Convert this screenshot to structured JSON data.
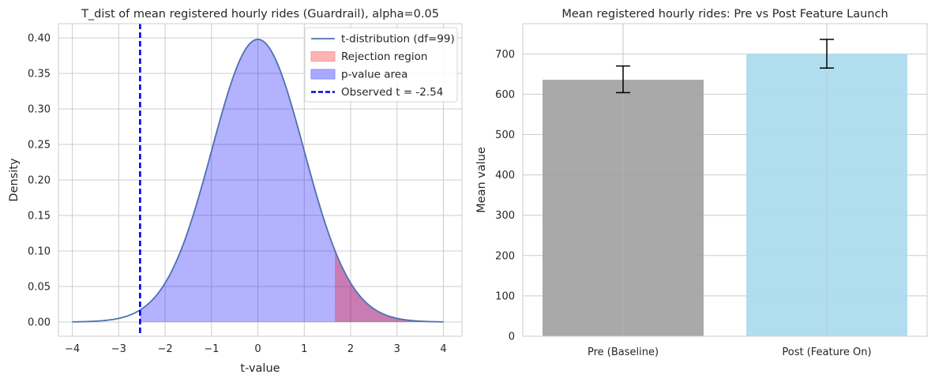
{
  "chart_data": [
    {
      "type": "area",
      "title": "T_dist of mean registered hourly rides (Guardrail), alpha=0.05",
      "xlabel": "t-value",
      "ylabel": "Density",
      "xlim": [
        -4.3,
        4.4
      ],
      "ylim": [
        -0.02,
        0.42
      ],
      "xticks": [
        -4,
        -3,
        -2,
        -1,
        0,
        1,
        2,
        3,
        4
      ],
      "yticks": [
        0.0,
        0.05,
        0.1,
        0.15,
        0.2,
        0.25,
        0.3,
        0.35,
        0.4
      ],
      "xtick_labels": [
        "−4",
        "−3",
        "−2",
        "−1",
        "0",
        "1",
        "2",
        "3",
        "4"
      ],
      "ytick_labels": [
        "0.00",
        "0.05",
        "0.10",
        "0.15",
        "0.20",
        "0.25",
        "0.30",
        "0.35",
        "0.40"
      ],
      "grid": true,
      "legend_position": "top-right",
      "df": 99,
      "x_range": [
        -4,
        4
      ],
      "observed_t": -2.54,
      "critical_t": 1.66,
      "p_value_region": [
        -2.54,
        4
      ],
      "legend": [
        {
          "label": "t-distribution (df=99)",
          "kind": "line",
          "color": "#4c72b0"
        },
        {
          "label": "Rejection region",
          "kind": "patch",
          "color": "#ff9999"
        },
        {
          "label": "p-value area",
          "kind": "patch",
          "color": "#8c8cff"
        },
        {
          "label": "Observed t = -2.54",
          "kind": "dashed",
          "color": "#0000ee"
        }
      ],
      "colors": {
        "curve": "#4c72b0",
        "rejection": "#ff0000",
        "pvalue": "#0000ff",
        "observed": "#0000ee"
      }
    },
    {
      "type": "bar",
      "title": "Mean registered hourly rides: Pre vs Post Feature Launch",
      "xlabel": "",
      "ylabel": "Mean value",
      "ylim": [
        0,
        775
      ],
      "yticks": [
        0,
        100,
        200,
        300,
        400,
        500,
        600,
        700
      ],
      "ytick_labels": [
        "0",
        "100",
        "200",
        "300",
        "400",
        "500",
        "600",
        "700"
      ],
      "grid": true,
      "categories": [
        "Pre (Baseline)",
        "Post (Feature On)"
      ],
      "values": [
        636,
        700
      ],
      "error_low": [
        604,
        665
      ],
      "error_high": [
        670,
        736
      ],
      "colors": [
        "#a2a2a2",
        "#a9dbee"
      ]
    }
  ]
}
